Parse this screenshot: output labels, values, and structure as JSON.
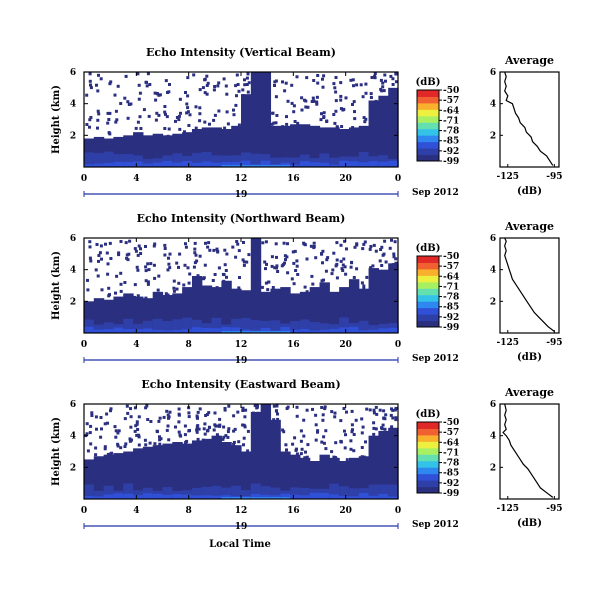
{
  "chart_data": [
    {
      "type": "heatmap",
      "title": "Echo Intensity (Vertical Beam)",
      "ylabel": "Height (km)",
      "x_ticks": [
        "0",
        "4",
        "8",
        "12",
        "16",
        "20",
        "0"
      ],
      "y_ticks": [
        "6",
        "4",
        "2"
      ],
      "date_label": "19",
      "month_label": "Sep 2012",
      "xlim": [
        0,
        24
      ],
      "ylim": [
        0,
        6
      ],
      "cloud_top_km": [
        1.8,
        1.9,
        1.8,
        1.9,
        2.0,
        2.2,
        2.0,
        2.1,
        2.0,
        2.1,
        2.2,
        2.4,
        2.5,
        2.5,
        2.4,
        2.6,
        4.6,
        6.0,
        6.0,
        2.6,
        2.6,
        2.7,
        2.7,
        2.6,
        2.5,
        2.5,
        2.4,
        2.5,
        2.6,
        4.2,
        4.5,
        5.0
      ],
      "colorbar": {
        "unit": "(dB)",
        "ticks": [
          "-50",
          "-57",
          "-64",
          "-71",
          "-78",
          "-85",
          "-92",
          "-99"
        ],
        "range": [
          -99,
          -50
        ],
        "colors": [
          "#2b2f80",
          "#2f3fa8",
          "#3050d8",
          "#2f88f0",
          "#33c3e8",
          "#64e0b0",
          "#a9ef62",
          "#eef040",
          "#f9b02c",
          "#f06030",
          "#e02828"
        ]
      },
      "profile": {
        "title": "Average",
        "xlabel": "(dB)",
        "x_ticks": [
          "-125",
          "-95"
        ],
        "y_ticks": [
          "6",
          "4",
          "2"
        ],
        "xlim": [
          -130,
          -92
        ],
        "ylim": [
          0,
          6
        ],
        "heights": [
          0.1,
          0.4,
          0.7,
          1.0,
          1.3,
          1.6,
          1.9,
          2.2,
          2.5,
          2.8,
          3.1,
          3.4,
          3.7,
          4.0,
          4.2,
          4.5,
          4.8,
          5.1,
          5.4,
          5.7,
          6.0
        ],
        "values": [
          -96,
          -98,
          -100,
          -104,
          -106,
          -109,
          -110,
          -113,
          -114,
          -117,
          -118,
          -120,
          -121,
          -122,
          -126,
          -125,
          -127,
          -126,
          -127,
          -126,
          -127
        ]
      }
    },
    {
      "type": "heatmap",
      "title": "Echo Intensity (Northward Beam)",
      "ylabel": "Height (km)",
      "x_ticks": [
        "0",
        "4",
        "8",
        "12",
        "16",
        "20",
        "0"
      ],
      "y_ticks": [
        "6",
        "4",
        "2"
      ],
      "date_label": "19",
      "month_label": "Sep 2012",
      "xlim": [
        0,
        24
      ],
      "ylim": [
        0,
        6
      ],
      "cloud_top_km": [
        2.0,
        2.2,
        2.1,
        2.3,
        2.5,
        2.3,
        2.2,
        2.6,
        2.4,
        2.5,
        2.9,
        3.6,
        3.0,
        2.9,
        3.3,
        2.8,
        2.7,
        6.0,
        2.6,
        2.8,
        2.9,
        2.5,
        2.6,
        2.9,
        3.2,
        2.6,
        2.9,
        3.4,
        2.8,
        4.1,
        4.0,
        4.4
      ],
      "colorbar": {
        "unit": "(dB)",
        "ticks": [
          "-50",
          "-57",
          "-64",
          "-71",
          "-78",
          "-85",
          "-92",
          "-99"
        ],
        "range": [
          -99,
          -50
        ],
        "colors": [
          "#2b2f80",
          "#2f3fa8",
          "#3050d8",
          "#2f88f0",
          "#33c3e8",
          "#64e0b0",
          "#a9ef62",
          "#eef040",
          "#f9b02c",
          "#f06030",
          "#e02828"
        ]
      },
      "profile": {
        "title": "Average",
        "xlabel": "(dB)",
        "x_ticks": [
          "-125",
          "-95"
        ],
        "y_ticks": [
          "6",
          "4",
          "2"
        ],
        "xlim": [
          -130,
          -92
        ],
        "ylim": [
          0,
          6
        ],
        "heights": [
          0.1,
          0.4,
          0.7,
          1.0,
          1.3,
          1.6,
          1.9,
          2.2,
          2.5,
          2.8,
          3.1,
          3.4,
          3.7,
          4.0,
          4.3,
          4.6,
          4.9,
          5.2,
          5.5,
          5.8,
          6.0
        ],
        "values": [
          -95,
          -99,
          -102,
          -105,
          -108,
          -110,
          -112,
          -114,
          -116,
          -118,
          -120,
          -122,
          -123,
          -124,
          -125,
          -126,
          -127,
          -126,
          -127,
          -126,
          -127
        ]
      }
    },
    {
      "type": "heatmap",
      "title": "Echo Intensity (Eastward Beam)",
      "ylabel": "Height (km)",
      "x_ticks": [
        "0",
        "4",
        "8",
        "12",
        "16",
        "20",
        "0"
      ],
      "y_ticks": [
        "6",
        "4",
        "2"
      ],
      "date_label": "19",
      "month_label": "Sep 2012",
      "xlim": [
        0,
        24
      ],
      "ylim": [
        0,
        6
      ],
      "cloud_top_km": [
        2.5,
        2.7,
        2.8,
        2.9,
        3.0,
        3.2,
        3.3,
        3.4,
        3.5,
        3.6,
        3.5,
        3.7,
        3.8,
        4.0,
        3.6,
        3.4,
        3.0,
        5.5,
        6.0,
        5.0,
        3.0,
        2.8,
        2.6,
        2.4,
        2.8,
        2.6,
        2.4,
        2.6,
        2.7,
        4.0,
        4.3,
        4.5
      ],
      "colorbar": {
        "unit": "(dB)",
        "ticks": [
          "-50",
          "-57",
          "-64",
          "-71",
          "-78",
          "-85",
          "-92",
          "-99"
        ],
        "range": [
          -99,
          -50
        ],
        "colors": [
          "#2b2f80",
          "#2f3fa8",
          "#3050d8",
          "#2f88f0",
          "#33c3e8",
          "#64e0b0",
          "#a9ef62",
          "#eef040",
          "#f9b02c",
          "#f06030",
          "#e02828"
        ]
      },
      "profile": {
        "title": "Average",
        "xlabel": "(dB)",
        "x_ticks": [
          "-125",
          "-95"
        ],
        "y_ticks": [
          "6",
          "4",
          "2"
        ],
        "xlim": [
          -130,
          -92
        ],
        "ylim": [
          0,
          6
        ],
        "heights": [
          0.1,
          0.4,
          0.7,
          1.0,
          1.3,
          1.6,
          1.9,
          2.2,
          2.5,
          2.8,
          3.1,
          3.4,
          3.7,
          4.0,
          4.2,
          4.4,
          4.7,
          5.0,
          5.3,
          5.6,
          6.0
        ],
        "values": [
          -96,
          -100,
          -104,
          -106,
          -108,
          -110,
          -112,
          -115,
          -117,
          -119,
          -121,
          -123,
          -124,
          -126,
          -128,
          -126,
          -127,
          -126,
          -127,
          -126,
          -127
        ]
      }
    }
  ],
  "figure": {
    "xlabel": "Local Time"
  }
}
